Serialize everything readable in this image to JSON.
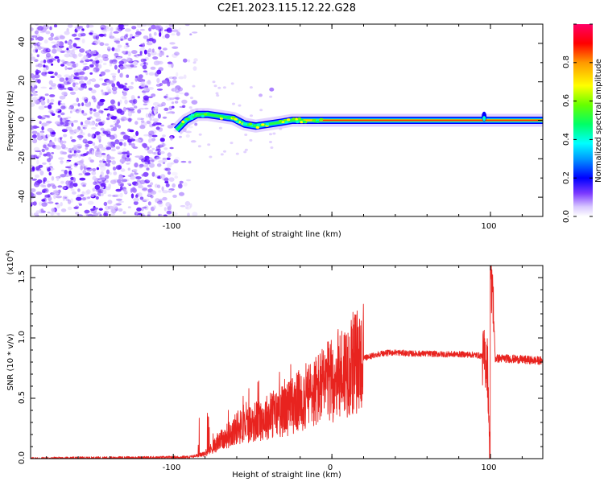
{
  "title": "C2E1.2023.115.12.22.G28",
  "top_plot": {
    "xlabel": "Height of straight line (km)",
    "ylabel": "Frequency (Hz)",
    "x_ticks": [
      "-100",
      "100"
    ],
    "y_ticks": [
      "40",
      "20",
      "0",
      "-20",
      "-40"
    ],
    "colorbar_label": "Normalized spectral amplitude",
    "colorbar_ticks": [
      "0.0",
      "0.2",
      "0.4",
      "0.6",
      "0.8"
    ]
  },
  "bottom_plot": {
    "xlabel": "Height of straight line (km)",
    "ylabel": "SNR (10 * v/v)",
    "multiplier": "(x10",
    "multiplier_exp": "4",
    "multiplier_close": ")",
    "x_ticks": [
      "-100",
      "0",
      "100"
    ],
    "y_ticks": [
      "1.5",
      "1.0",
      "0.5",
      "0.0"
    ]
  },
  "chart_data": [
    {
      "type": "heatmap",
      "title": "C2E1.2023.115.12.22.G28",
      "xlabel": "Height of straight line (km)",
      "ylabel": "Frequency (Hz)",
      "xlim": [
        -190,
        133
      ],
      "ylim": [
        -50,
        50
      ],
      "colorbar": {
        "label": "Normalized spectral amplitude",
        "range": [
          0,
          1
        ]
      },
      "ridge": {
        "x": [
          -98,
          -92,
          -85,
          -78,
          -70,
          -62,
          -55,
          -48,
          -40,
          -32,
          -25,
          -18,
          -10,
          0,
          20,
          50,
          80,
          92,
          95,
          98,
          133
        ],
        "frequency": [
          -5,
          0,
          3,
          3,
          2,
          1,
          -2,
          -3,
          -2,
          -1,
          0,
          0,
          0,
          0,
          0,
          0,
          0,
          0,
          0,
          0,
          0
        ]
      },
      "noise_region_x": [
        -190,
        -88
      ],
      "colormap": [
        "#ffffff",
        "#9b59ff",
        "#5b00ff",
        "#0000ff",
        "#00b0ff",
        "#00ffff",
        "#00ff66",
        "#66ff00",
        "#ffff00",
        "#ffa000",
        "#ff0000",
        "#ff007f"
      ]
    },
    {
      "type": "line",
      "title": "",
      "xlabel": "Height of straight line (km)",
      "ylabel": "SNR (10 * v/v)",
      "xlim": [
        -190,
        133
      ],
      "ylim": [
        0,
        16000
      ],
      "series": [
        {
          "color": "#e8231f",
          "x": [
            -190,
            -150,
            -110,
            -90,
            -80,
            -70,
            -60,
            -50,
            -40,
            -30,
            -20,
            -10,
            0,
            10,
            20,
            30,
            40,
            50,
            60,
            70,
            80,
            90,
            95,
            98,
            100,
            101,
            103,
            110,
            120,
            133
          ],
          "y": [
            0,
            50,
            80,
            120,
            400,
            1500,
            2500,
            3000,
            3500,
            4000,
            4800,
            5600,
            6500,
            7600,
            8300,
            8700,
            8800,
            8700,
            8700,
            8650,
            8650,
            8600,
            8500,
            8000,
            100,
            15500,
            8300,
            8300,
            8200,
            8100
          ]
        }
      ]
    }
  ]
}
